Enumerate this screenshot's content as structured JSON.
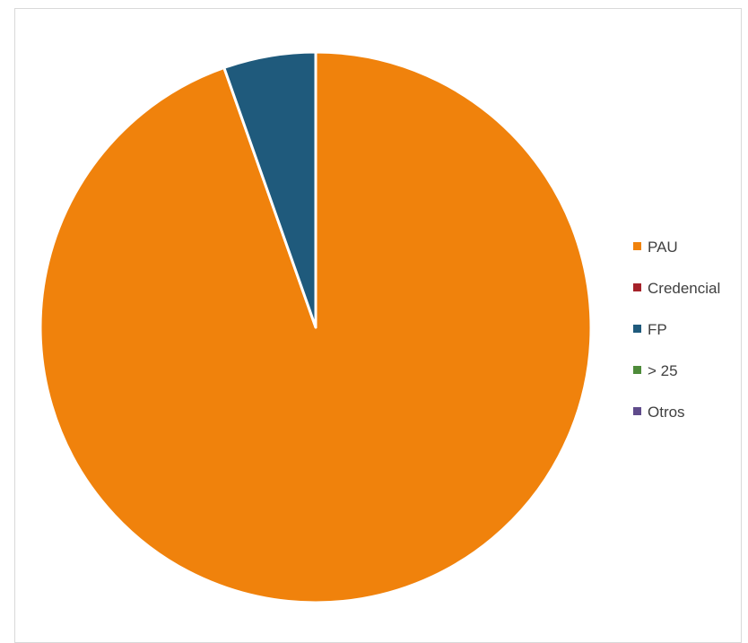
{
  "chart_data": {
    "type": "pie",
    "title": "",
    "categories": [
      "PAU",
      "Credencial",
      "FP",
      "> 25",
      "Otros"
    ],
    "values": [
      94.6,
      0,
      5.4,
      0,
      0
    ],
    "colors": [
      "#f0820c",
      "#a5222a",
      "#1f5a7c",
      "#4e8b3a",
      "#5f4b8b"
    ],
    "slice_border_color": "#ffffff",
    "start_angle_deg": 0,
    "direction": "clockwise",
    "legend": {
      "position": "right",
      "entries": [
        "PAU",
        "Credencial",
        "FP",
        "> 25",
        "Otros"
      ]
    }
  }
}
